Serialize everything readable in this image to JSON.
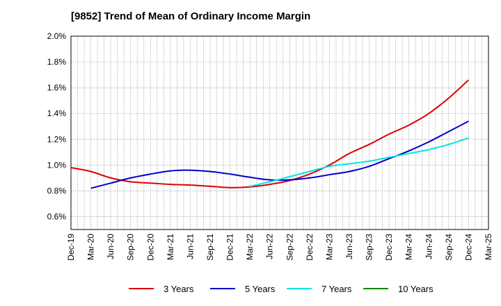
{
  "title": "[9852]  Trend of Mean of Ordinary Income Margin",
  "chart_data": {
    "type": "line",
    "x": [
      "Dec-19",
      "Mar-20",
      "Jun-20",
      "Sep-20",
      "Dec-20",
      "Mar-21",
      "Jun-21",
      "Sep-21",
      "Dec-21",
      "Mar-22",
      "Jun-22",
      "Sep-22",
      "Dec-22",
      "Mar-23",
      "Jun-23",
      "Sep-23",
      "Dec-23",
      "Mar-24",
      "Jun-24",
      "Sep-24",
      "Dec-24",
      "Mar-25"
    ],
    "ylim": [
      0.5,
      2.0
    ],
    "yticks": [
      0.6,
      0.8,
      1.0,
      1.2,
      1.4,
      1.6,
      1.8,
      2.0
    ],
    "ytick_labels": [
      "0.6%",
      "0.8%",
      "1.0%",
      "1.2%",
      "1.4%",
      "1.6%",
      "1.8%",
      "2.0%"
    ],
    "grid": true,
    "legend_position": "bottom",
    "series": [
      {
        "name": "3 Years",
        "color": "#dd0000",
        "values": [
          0.98,
          0.95,
          0.9,
          0.87,
          0.86,
          0.85,
          0.845,
          0.835,
          0.825,
          0.83,
          0.85,
          0.88,
          0.93,
          1.0,
          1.09,
          1.16,
          1.24,
          1.31,
          1.4,
          1.52,
          1.66,
          null
        ]
      },
      {
        "name": "5 Years",
        "color": "#0000cc",
        "values": [
          null,
          0.82,
          0.86,
          0.9,
          0.93,
          0.955,
          0.96,
          0.95,
          0.93,
          0.905,
          0.885,
          0.885,
          0.9,
          0.925,
          0.95,
          0.99,
          1.05,
          1.11,
          1.18,
          1.26,
          1.34,
          null
        ]
      },
      {
        "name": "7 Years",
        "color": "#00e5e5",
        "values": [
          null,
          null,
          null,
          null,
          null,
          null,
          null,
          null,
          null,
          0.835,
          0.87,
          0.91,
          0.95,
          0.99,
          1.01,
          1.03,
          1.06,
          1.09,
          1.12,
          1.16,
          1.21,
          null
        ]
      },
      {
        "name": "10 Years",
        "color": "#008800",
        "values": [
          null,
          null,
          null,
          null,
          null,
          null,
          null,
          null,
          null,
          null,
          null,
          null,
          null,
          null,
          null,
          null,
          null,
          null,
          null,
          null,
          null,
          null
        ]
      }
    ]
  }
}
